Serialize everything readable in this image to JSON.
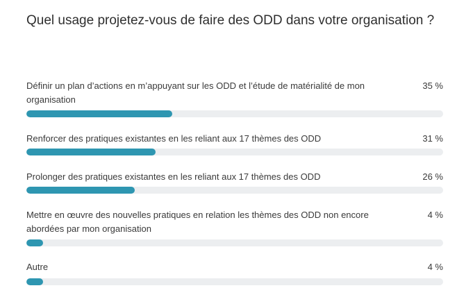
{
  "question": "Quel usage projetez-vous de faire des ODD dans votre organisation ?",
  "options": [
    {
      "label": "Définir un plan d’actions en m’appuyant sur les ODD et l’étude de matérialité de mon organisation",
      "percent_label": "35 %",
      "value": 35
    },
    {
      "label": "Renforcer des pratiques existantes en les reliant aux 17 thèmes des ODD",
      "percent_label": "31 %",
      "value": 31
    },
    {
      "label": "Prolonger des pratiques existantes en les reliant aux 17 thèmes des ODD",
      "percent_label": "26 %",
      "value": 26
    },
    {
      "label": "Mettre en œuvre des nouvelles pratiques en relation les thèmes des ODD non encore abordées par mon organisation",
      "percent_label": "4 %",
      "value": 4
    },
    {
      "label": "Autre",
      "percent_label": "4 %",
      "value": 4
    }
  ],
  "colors": {
    "bar_fill": "#2e96b1",
    "bar_track": "#eceef0"
  },
  "chart_data": {
    "type": "bar",
    "orientation": "horizontal",
    "categories": [
      "Définir un plan d’actions en m’appuyant sur les ODD et l’étude de matérialité de mon organisation",
      "Renforcer des pratiques existantes en les reliant aux 17 thèmes des ODD",
      "Prolonger des pratiques existantes en les reliant aux 17 thèmes des ODD",
      "Mettre en œuvre des nouvelles pratiques en relation les thèmes des ODD non encore abordées par mon organisation",
      "Autre"
    ],
    "values": [
      35,
      31,
      26,
      4,
      4
    ],
    "title": "Quel usage projetez-vous de faire des ODD dans votre organisation ?",
    "xlabel": "",
    "ylabel": "",
    "xlim": [
      0,
      100
    ],
    "grid": false,
    "legend": "none"
  }
}
